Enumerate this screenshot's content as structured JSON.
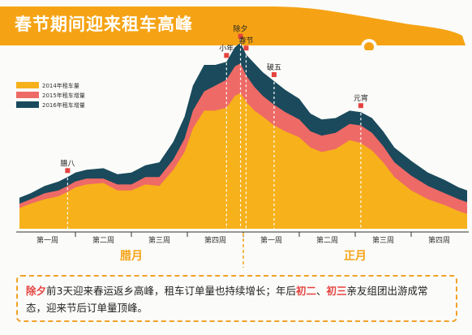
{
  "title": "春节期间迎来租车高峰",
  "colors": {
    "orange": "#f6b11b",
    "red": "#ee6a66",
    "navy": "#1a4a5c",
    "banner": "#f5a315"
  },
  "chart_data": {
    "type": "area",
    "title": "春节期间迎来租车高峰",
    "legend": [
      "2014年租车量",
      "2015年租车增量",
      "2016年租车增量"
    ],
    "legend_position": "top-left",
    "x_domain": [
      0,
      8
    ],
    "ylim": [
      0,
      100
    ],
    "grid": false,
    "months": [
      {
        "label": "腊月",
        "weeks": [
          "第一周",
          "第二周",
          "第三周",
          "第四周"
        ]
      },
      {
        "label": "正月",
        "weeks": [
          "第一周",
          "第二周",
          "第三周",
          "第四周"
        ]
      }
    ],
    "x": [
      0.0,
      0.2,
      0.45,
      0.7,
      0.86,
      1.0,
      1.2,
      1.5,
      1.75,
      2.0,
      2.25,
      2.5,
      2.75,
      2.95,
      3.1,
      3.3,
      3.5,
      3.7,
      3.85,
      3.95,
      4.05,
      4.2,
      4.35,
      4.55,
      4.75,
      5.0,
      5.2,
      5.4,
      5.65,
      5.9,
      6.1,
      6.3,
      6.5,
      6.7,
      7.0,
      7.3,
      7.6,
      7.85,
      8.0
    ],
    "series": [
      {
        "name": "2014年租车量",
        "values": [
          14,
          17,
          20,
          22,
          25,
          28,
          30,
          31,
          26,
          26,
          30,
          29,
          40,
          52,
          68,
          80,
          80,
          82,
          90,
          92,
          86,
          80,
          76,
          70,
          66,
          62,
          55,
          52,
          54,
          60,
          58,
          53,
          45,
          35,
          26,
          20,
          16,
          12,
          10
        ]
      },
      {
        "name": "2015年租车增量",
        "values": [
          3,
          3,
          4,
          4,
          4,
          4,
          4,
          3,
          4,
          4,
          5,
          6,
          7,
          9,
          12,
          13,
          17,
          19,
          20,
          20,
          18,
          16,
          14,
          14,
          13,
          12,
          11,
          11,
          11,
          11,
          12,
          12,
          11,
          10,
          10,
          9,
          8,
          8,
          8
        ]
      },
      {
        "name": "2016年租车增量",
        "values": [
          4,
          4,
          5,
          6,
          6,
          6,
          6,
          7,
          7,
          8,
          8,
          10,
          12,
          15,
          17,
          18,
          14,
          12,
          13,
          14,
          14,
          16,
          16,
          16,
          15,
          14,
          12,
          11,
          10,
          9,
          9,
          10,
          10,
          10,
          10,
          9,
          9,
          8,
          8
        ]
      }
    ],
    "events": [
      {
        "label": "腊八",
        "x": 0.86
      },
      {
        "label": "小年",
        "x": 3.7
      },
      {
        "label": "除夕",
        "x": 3.95
      },
      {
        "label": "春节",
        "x": 4.05
      },
      {
        "label": "破五",
        "x": 4.55
      },
      {
        "label": "元宵",
        "x": 6.1
      }
    ],
    "month_divider_x": 4.0
  },
  "caption": {
    "p1": "除夕",
    "p2": "前3天迎来春运返乡高峰，租车订单量也持续增长；年后",
    "p3": "初二",
    "p4": "、",
    "p5": "初三",
    "p6": "亲友组团出游成常态，迎来节后订单量顶峰。"
  }
}
